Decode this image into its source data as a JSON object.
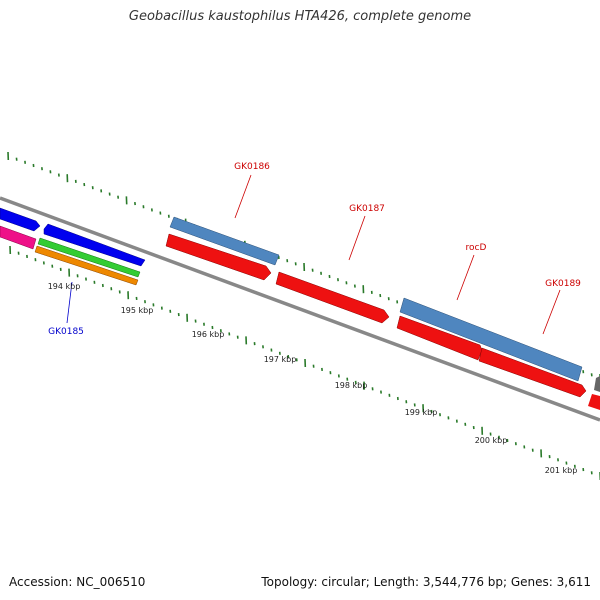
{
  "title": "Geobacillus kaustophilus HTA426, complete genome",
  "footer": {
    "accession": "Accession: NC_006510",
    "summary": "Topology: circular; Length: 3,544,776 bp; Genes: 3,611"
  },
  "scale_labels": [
    "194 kbp",
    "195 kbp",
    "196 kbp",
    "197 kbp",
    "198 kbp",
    "199 kbp",
    "200 kbp",
    "201 kbp"
  ],
  "gene_labels": [
    {
      "name": "GK0185",
      "color": "#0000cc"
    },
    {
      "name": "GK0186",
      "color": "#cc0000"
    },
    {
      "name": "GK0187",
      "color": "#cc0000"
    },
    {
      "name": "rocD",
      "color": "#cc0000"
    },
    {
      "name": "GK0189",
      "color": "#cc0000"
    }
  ],
  "colors": {
    "backbone": "#888888",
    "tick": "#2a7a2a",
    "steelblue_gene": "#4f86bf",
    "red_gene": "#ee1111",
    "blue_gene": "#0000ee",
    "magenta_gene": "#ee1188",
    "green_gene": "#33cc33",
    "orange_gene": "#ee8800"
  }
}
